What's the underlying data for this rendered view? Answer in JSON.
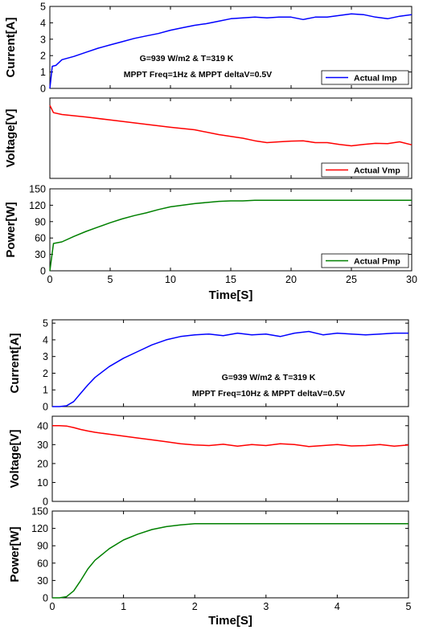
{
  "chart_data": [
    {
      "type": "line",
      "panels": [
        {
          "ylabel": "Current[A]",
          "ylim": [
            0,
            5
          ],
          "yticks": [
            "0",
            "1",
            "2",
            "3",
            "4",
            "5"
          ],
          "legend": "Actual Imp",
          "color": "#0000ff",
          "annotation": [
            "G=939 W/m2 & T=319 K",
            "MPPT Freq=1Hz & MPPT deltaV=0.5V"
          ],
          "x": [
            0,
            0.2,
            0.5,
            1,
            2,
            3,
            4,
            5,
            6,
            7,
            8,
            9,
            10,
            11,
            12,
            13,
            14,
            15,
            16,
            17,
            18,
            19,
            20,
            21,
            22,
            23,
            24,
            25,
            26,
            27,
            28,
            29,
            30
          ],
          "values": [
            0,
            1.35,
            1.4,
            1.75,
            1.95,
            2.2,
            2.45,
            2.65,
            2.85,
            3.05,
            3.2,
            3.35,
            3.55,
            3.7,
            3.85,
            3.95,
            4.1,
            4.25,
            4.3,
            4.35,
            4.3,
            4.35,
            4.35,
            4.2,
            4.35,
            4.35,
            4.45,
            4.55,
            4.5,
            4.35,
            4.25,
            4.4,
            4.5
          ]
        },
        {
          "ylabel": "Voltage[V]",
          "ylim": [
            20,
            42
          ],
          "yticks": [],
          "legend": "Actual Vmp",
          "color": "#ff0000",
          "x": [
            0,
            0.3,
            1,
            3,
            5,
            8,
            10,
            12,
            14,
            15,
            16,
            17,
            18,
            19,
            20,
            21,
            22,
            23,
            24,
            25,
            26,
            27,
            28,
            29,
            30
          ],
          "values": [
            40,
            38,
            37.5,
            36.8,
            36,
            34.8,
            34,
            33.3,
            32,
            31.5,
            31,
            30.3,
            29.8,
            30,
            30.2,
            30.3,
            29.8,
            29.8,
            29.3,
            28.9,
            29.3,
            29.6,
            29.5,
            30,
            29.2
          ]
        },
        {
          "ylabel": "Power[W]",
          "ylim": [
            0,
            150
          ],
          "yticks": [
            "0",
            "30",
            "60",
            "90",
            "120",
            "150"
          ],
          "legend": "Actual Pmp",
          "color": "#008000",
          "x": [
            0,
            0.3,
            1,
            2,
            3,
            4,
            5,
            6,
            7,
            8,
            9,
            10,
            11,
            12,
            13,
            14,
            15,
            16,
            17,
            18,
            19,
            20,
            21,
            22,
            23,
            24,
            25,
            26,
            27,
            28,
            29,
            30
          ],
          "values": [
            0,
            50,
            53,
            63,
            72,
            80,
            88,
            95,
            101,
            106,
            112,
            117,
            120,
            123,
            125,
            127,
            128,
            128,
            129,
            129,
            129,
            129,
            129,
            129,
            129,
            129,
            129,
            129,
            129,
            129,
            129,
            129
          ]
        }
      ],
      "xlim": [
        0,
        30
      ],
      "xticks": [
        "0",
        "5",
        "10",
        "15",
        "20",
        "25",
        "30"
      ],
      "xlabel": "Time[S]"
    },
    {
      "type": "line",
      "panels": [
        {
          "ylabel": "Current[A]",
          "ylim": [
            0,
            5.2
          ],
          "yticks": [
            "0",
            "1",
            "2",
            "3",
            "4",
            "5"
          ],
          "legend": "",
          "color": "#0000ff",
          "annotation": [
            "G=939 W/m2 & T=319 K",
            "MPPT Freq=10Hz & MPPT deltaV=0.5V"
          ],
          "x": [
            0,
            0.1,
            0.2,
            0.3,
            0.4,
            0.5,
            0.6,
            0.8,
            1.0,
            1.2,
            1.4,
            1.6,
            1.8,
            2.0,
            2.2,
            2.4,
            2.6,
            2.8,
            3.0,
            3.2,
            3.4,
            3.6,
            3.8,
            4.0,
            4.2,
            4.4,
            4.6,
            4.8,
            5.0
          ],
          "values": [
            0,
            0,
            0.05,
            0.3,
            0.8,
            1.3,
            1.75,
            2.4,
            2.9,
            3.3,
            3.7,
            4.0,
            4.2,
            4.3,
            4.35,
            4.25,
            4.4,
            4.3,
            4.35,
            4.2,
            4.4,
            4.5,
            4.3,
            4.4,
            4.35,
            4.3,
            4.35,
            4.4,
            4.4
          ]
        },
        {
          "ylabel": "Voltage[V]",
          "ylim": [
            0,
            45
          ],
          "yticks": [
            "0",
            "10",
            "20",
            "30",
            "40"
          ],
          "legend": "",
          "color": "#ff0000",
          "x": [
            0,
            0.1,
            0.2,
            0.3,
            0.4,
            0.5,
            0.6,
            0.8,
            1.0,
            1.2,
            1.4,
            1.6,
            1.8,
            2.0,
            2.2,
            2.4,
            2.6,
            2.8,
            3.0,
            3.2,
            3.4,
            3.6,
            3.8,
            4.0,
            4.2,
            4.4,
            4.6,
            4.8,
            5.0
          ],
          "values": [
            40,
            40,
            39.8,
            39,
            38,
            37.2,
            36.5,
            35.5,
            34.5,
            33.5,
            32.5,
            31.5,
            30.5,
            29.8,
            29.5,
            30.2,
            29.2,
            30,
            29.5,
            30.5,
            30,
            29,
            29.5,
            30,
            29.3,
            29.5,
            30,
            29.2,
            29.8
          ]
        },
        {
          "ylabel": "Power[W]",
          "ylim": [
            0,
            150
          ],
          "yticks": [
            "0",
            "30",
            "60",
            "90",
            "120",
            "150"
          ],
          "legend": "",
          "color": "#008000",
          "x": [
            0,
            0.1,
            0.2,
            0.3,
            0.4,
            0.5,
            0.6,
            0.8,
            1.0,
            1.2,
            1.4,
            1.6,
            1.8,
            2.0,
            2.2,
            2.4,
            2.6,
            2.8,
            3.0,
            3.2,
            3.4,
            3.6,
            3.8,
            4.0,
            4.2,
            4.4,
            4.6,
            4.8,
            5.0
          ],
          "values": [
            0,
            0,
            2,
            12,
            30,
            50,
            65,
            85,
            100,
            110,
            118,
            123,
            126,
            128,
            128,
            128,
            128,
            128,
            128,
            128,
            128,
            128,
            128,
            128,
            128,
            128,
            128,
            128,
            128
          ]
        }
      ],
      "xlim": [
        0,
        5
      ],
      "xticks": [
        "0",
        "1",
        "2",
        "3",
        "4",
        "5"
      ],
      "xlabel": "Time[S]"
    }
  ]
}
